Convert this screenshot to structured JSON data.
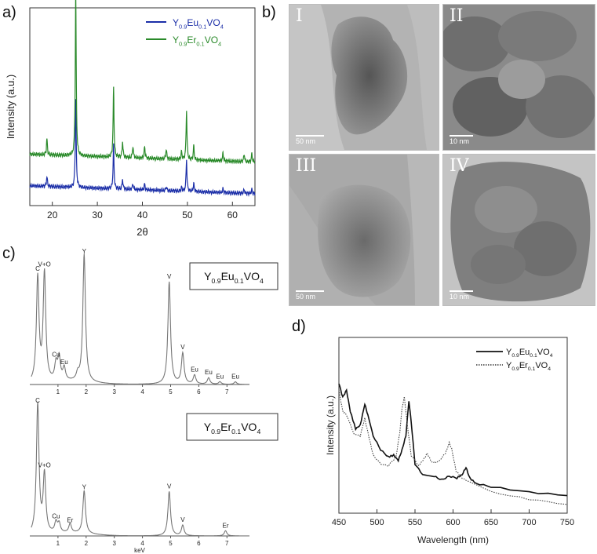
{
  "panel_letters": [
    "a)",
    "b)",
    "c)",
    "d)"
  ],
  "tem": {
    "labels": [
      "I",
      "II",
      "III",
      "IV"
    ],
    "scalebars": [
      "50 nm",
      "10 nm",
      "50 nm",
      "10 nm"
    ]
  },
  "chart_data": [
    {
      "panel": "a",
      "type": "line",
      "xlabel": "2θ",
      "ylabel": "Intensity (a.u.)",
      "xlim": [
        15,
        65
      ],
      "xticks": [
        20,
        30,
        40,
        50,
        60
      ],
      "legend_position": "top-right",
      "series": [
        {
          "name_parts": [
            "Y",
            "0.9",
            "Eu",
            "0.1",
            "VO",
            "4"
          ],
          "color": "#1c2fa8",
          "baseline": 0.1,
          "peaks": [
            [
              18.8,
              0.05
            ],
            [
              25.2,
              0.45
            ],
            [
              33.6,
              0.22
            ],
            [
              35.6,
              0.05
            ],
            [
              37.9,
              0.03
            ],
            [
              40.5,
              0.03
            ],
            [
              45.3,
              0.02
            ],
            [
              48.7,
              0.02
            ],
            [
              49.8,
              0.16
            ],
            [
              51.4,
              0.04
            ],
            [
              57.9,
              0.02
            ],
            [
              62.6,
              0.02
            ],
            [
              64.3,
              0.02
            ]
          ]
        },
        {
          "name_parts": [
            "Y",
            "0.9",
            "Er",
            "0.1",
            "VO",
            "4"
          ],
          "color": "#2a8a2a",
          "baseline": 0.26,
          "peaks": [
            [
              18.8,
              0.08
            ],
            [
              25.2,
              0.85
            ],
            [
              33.6,
              0.35
            ],
            [
              35.6,
              0.08
            ],
            [
              37.9,
              0.06
            ],
            [
              40.5,
              0.06
            ],
            [
              45.3,
              0.05
            ],
            [
              48.7,
              0.04
            ],
            [
              49.8,
              0.25
            ],
            [
              51.4,
              0.07
            ],
            [
              57.9,
              0.04
            ],
            [
              62.6,
              0.04
            ],
            [
              64.3,
              0.04
            ]
          ]
        }
      ]
    },
    {
      "panel": "c-top",
      "type": "line",
      "xlabel": "keV",
      "xlim": [
        0,
        7.8
      ],
      "xticks": [
        1,
        2,
        3,
        4,
        5,
        6,
        7
      ],
      "legend_parts": [
        "Y",
        "0.9",
        "Eu",
        "0.1",
        "VO",
        "4"
      ],
      "peaks": [
        [
          0.28,
          0.82
        ],
        [
          0.52,
          0.85
        ],
        [
          0.93,
          0.13
        ],
        [
          1.04,
          0.18
        ],
        [
          1.22,
          0.1
        ],
        [
          1.7,
          0.05
        ],
        [
          1.93,
          1.0
        ],
        [
          4.95,
          0.8
        ],
        [
          5.43,
          0.24
        ],
        [
          5.85,
          0.07
        ],
        [
          6.35,
          0.05
        ],
        [
          6.75,
          0.02
        ],
        [
          7.3,
          0.02
        ]
      ],
      "annotations": [
        [
          "C",
          0.28
        ],
        [
          "V+O",
          0.52
        ],
        [
          "Cu",
          0.93
        ],
        [
          "Eu",
          1.22
        ],
        [
          "Y",
          1.93
        ],
        [
          "V",
          4.95
        ],
        [
          "V",
          5.43
        ],
        [
          "Eu",
          5.85
        ],
        [
          "Eu",
          6.35
        ],
        [
          "Eu",
          6.75
        ],
        [
          "Eu",
          7.3
        ]
      ]
    },
    {
      "panel": "c-bottom",
      "type": "line",
      "xlabel": "keV",
      "xlim": [
        0,
        7.8
      ],
      "xticks": [
        1,
        2,
        3,
        4,
        5,
        6,
        7
      ],
      "legend_parts": [
        "Y",
        "0.9",
        "Er",
        "0.1",
        "VO",
        "4"
      ],
      "peaks": [
        [
          0.28,
          1.0
        ],
        [
          0.52,
          0.45
        ],
        [
          0.93,
          0.08
        ],
        [
          1.04,
          0.07
        ],
        [
          1.43,
          0.07
        ],
        [
          1.93,
          0.33
        ],
        [
          4.95,
          0.34
        ],
        [
          5.43,
          0.08
        ],
        [
          6.95,
          0.04
        ]
      ],
      "annotations": [
        [
          "C",
          0.28
        ],
        [
          "V+O",
          0.52
        ],
        [
          "Cu",
          0.93
        ],
        [
          "Er",
          1.43
        ],
        [
          "Y",
          1.93
        ],
        [
          "V",
          4.95
        ],
        [
          "V",
          5.43
        ],
        [
          "Er",
          6.95
        ]
      ]
    },
    {
      "panel": "d",
      "type": "line",
      "xlabel": "Wavelength (nm)",
      "ylabel": "Intensity (a.u.)",
      "xlim": [
        450,
        750
      ],
      "xticks": [
        450,
        500,
        550,
        600,
        650,
        700,
        750
      ],
      "legend_position": "top-right",
      "series": [
        {
          "name_parts": [
            "Y",
            "0.9",
            "Eu",
            "0.1",
            "VO",
            "4"
          ],
          "style": "solid",
          "points": [
            [
              450,
              0.74
            ],
            [
              455,
              0.66
            ],
            [
              460,
              0.7
            ],
            [
              465,
              0.58
            ],
            [
              472,
              0.48
            ],
            [
              478,
              0.5
            ],
            [
              484,
              0.62
            ],
            [
              488,
              0.56
            ],
            [
              495,
              0.44
            ],
            [
              505,
              0.36
            ],
            [
              515,
              0.32
            ],
            [
              522,
              0.33
            ],
            [
              528,
              0.3
            ],
            [
              533,
              0.36
            ],
            [
              538,
              0.44
            ],
            [
              542,
              0.64
            ],
            [
              545,
              0.52
            ],
            [
              550,
              0.28
            ],
            [
              560,
              0.22
            ],
            [
              575,
              0.21
            ],
            [
              585,
              0.19
            ],
            [
              595,
              0.21
            ],
            [
              605,
              0.2
            ],
            [
              612,
              0.22
            ],
            [
              617,
              0.26
            ],
            [
              622,
              0.2
            ],
            [
              630,
              0.17
            ],
            [
              650,
              0.15
            ],
            [
              700,
              0.12
            ],
            [
              750,
              0.1
            ]
          ]
        },
        {
          "name_parts": [
            "Y",
            "0.9",
            "Er",
            "0.1",
            "VO",
            "4"
          ],
          "style": "dotted",
          "points": [
            [
              450,
              0.7
            ],
            [
              455,
              0.58
            ],
            [
              460,
              0.56
            ],
            [
              470,
              0.45
            ],
            [
              478,
              0.44
            ],
            [
              484,
              0.54
            ],
            [
              488,
              0.46
            ],
            [
              495,
              0.33
            ],
            [
              505,
              0.28
            ],
            [
              515,
              0.27
            ],
            [
              525,
              0.32
            ],
            [
              530,
              0.46
            ],
            [
              533,
              0.6
            ],
            [
              536,
              0.66
            ],
            [
              540,
              0.5
            ],
            [
              545,
              0.33
            ],
            [
              555,
              0.27
            ],
            [
              562,
              0.31
            ],
            [
              566,
              0.34
            ],
            [
              572,
              0.29
            ],
            [
              580,
              0.29
            ],
            [
              590,
              0.34
            ],
            [
              595,
              0.4
            ],
            [
              598,
              0.37
            ],
            [
              604,
              0.24
            ],
            [
              612,
              0.2
            ],
            [
              620,
              0.18
            ],
            [
              650,
              0.12
            ],
            [
              700,
              0.08
            ],
            [
              750,
              0.05
            ]
          ]
        }
      ]
    }
  ]
}
